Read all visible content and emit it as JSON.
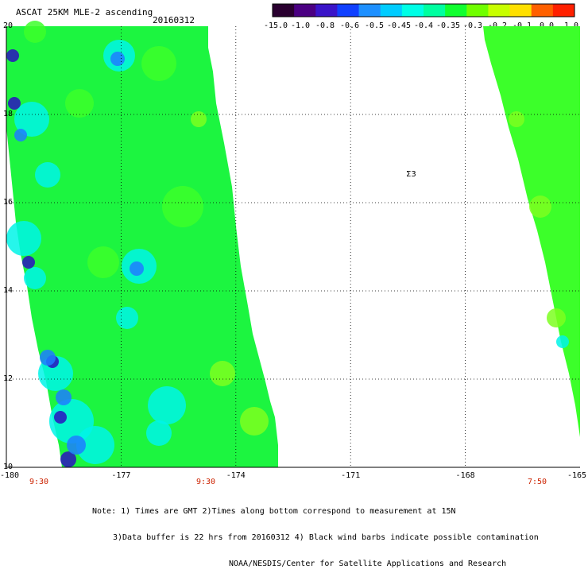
{
  "title": "ASCAT 25KM MLE-2 ascending",
  "date": "20160312",
  "colorbar": {
    "labels": [
      "-15.0",
      "-1.0",
      "-0.8",
      "-0.6",
      "-0.5",
      "-0.45",
      "-0.4",
      "-0.35",
      "-0.3",
      "-0.2",
      "-0.1",
      "0.0",
      "1.0"
    ],
    "colors": [
      "#2a0030",
      "#4b0082",
      "#3a14c8",
      "#1040ff",
      "#1e90ff",
      "#00ccff",
      "#00ffe6",
      "#00ffa0",
      "#10ff30",
      "#70ff00",
      "#c8ff00",
      "#ffe000",
      "#ff6000",
      "#ff2000"
    ]
  },
  "lat_labels": [
    "20",
    "18",
    "16",
    "14",
    "12",
    "10"
  ],
  "lon_labels": [
    "-180",
    "-177",
    "-174",
    "-171",
    "-168",
    "-165"
  ],
  "time_labels": [
    "9:30",
    "9:30",
    "7:50"
  ],
  "notes": [
    "Note: 1) Times are GMT 2)Times along bottom correspond to measurement at 15N",
    "3)Data buffer is 22 hrs from 20160312 4) Black wind barbs indicate possible contamination",
    "NOAA/NESDIS/Center for Satellite Applications and Research"
  ],
  "marker_label": "Σ3",
  "field_colors": {
    "main": "#1cf540",
    "alt": "#3cff2a",
    "cyan": "#00f5e8",
    "blue": "#1e7cff",
    "deep": "#2a10c0",
    "lime": "#7cff20"
  }
}
